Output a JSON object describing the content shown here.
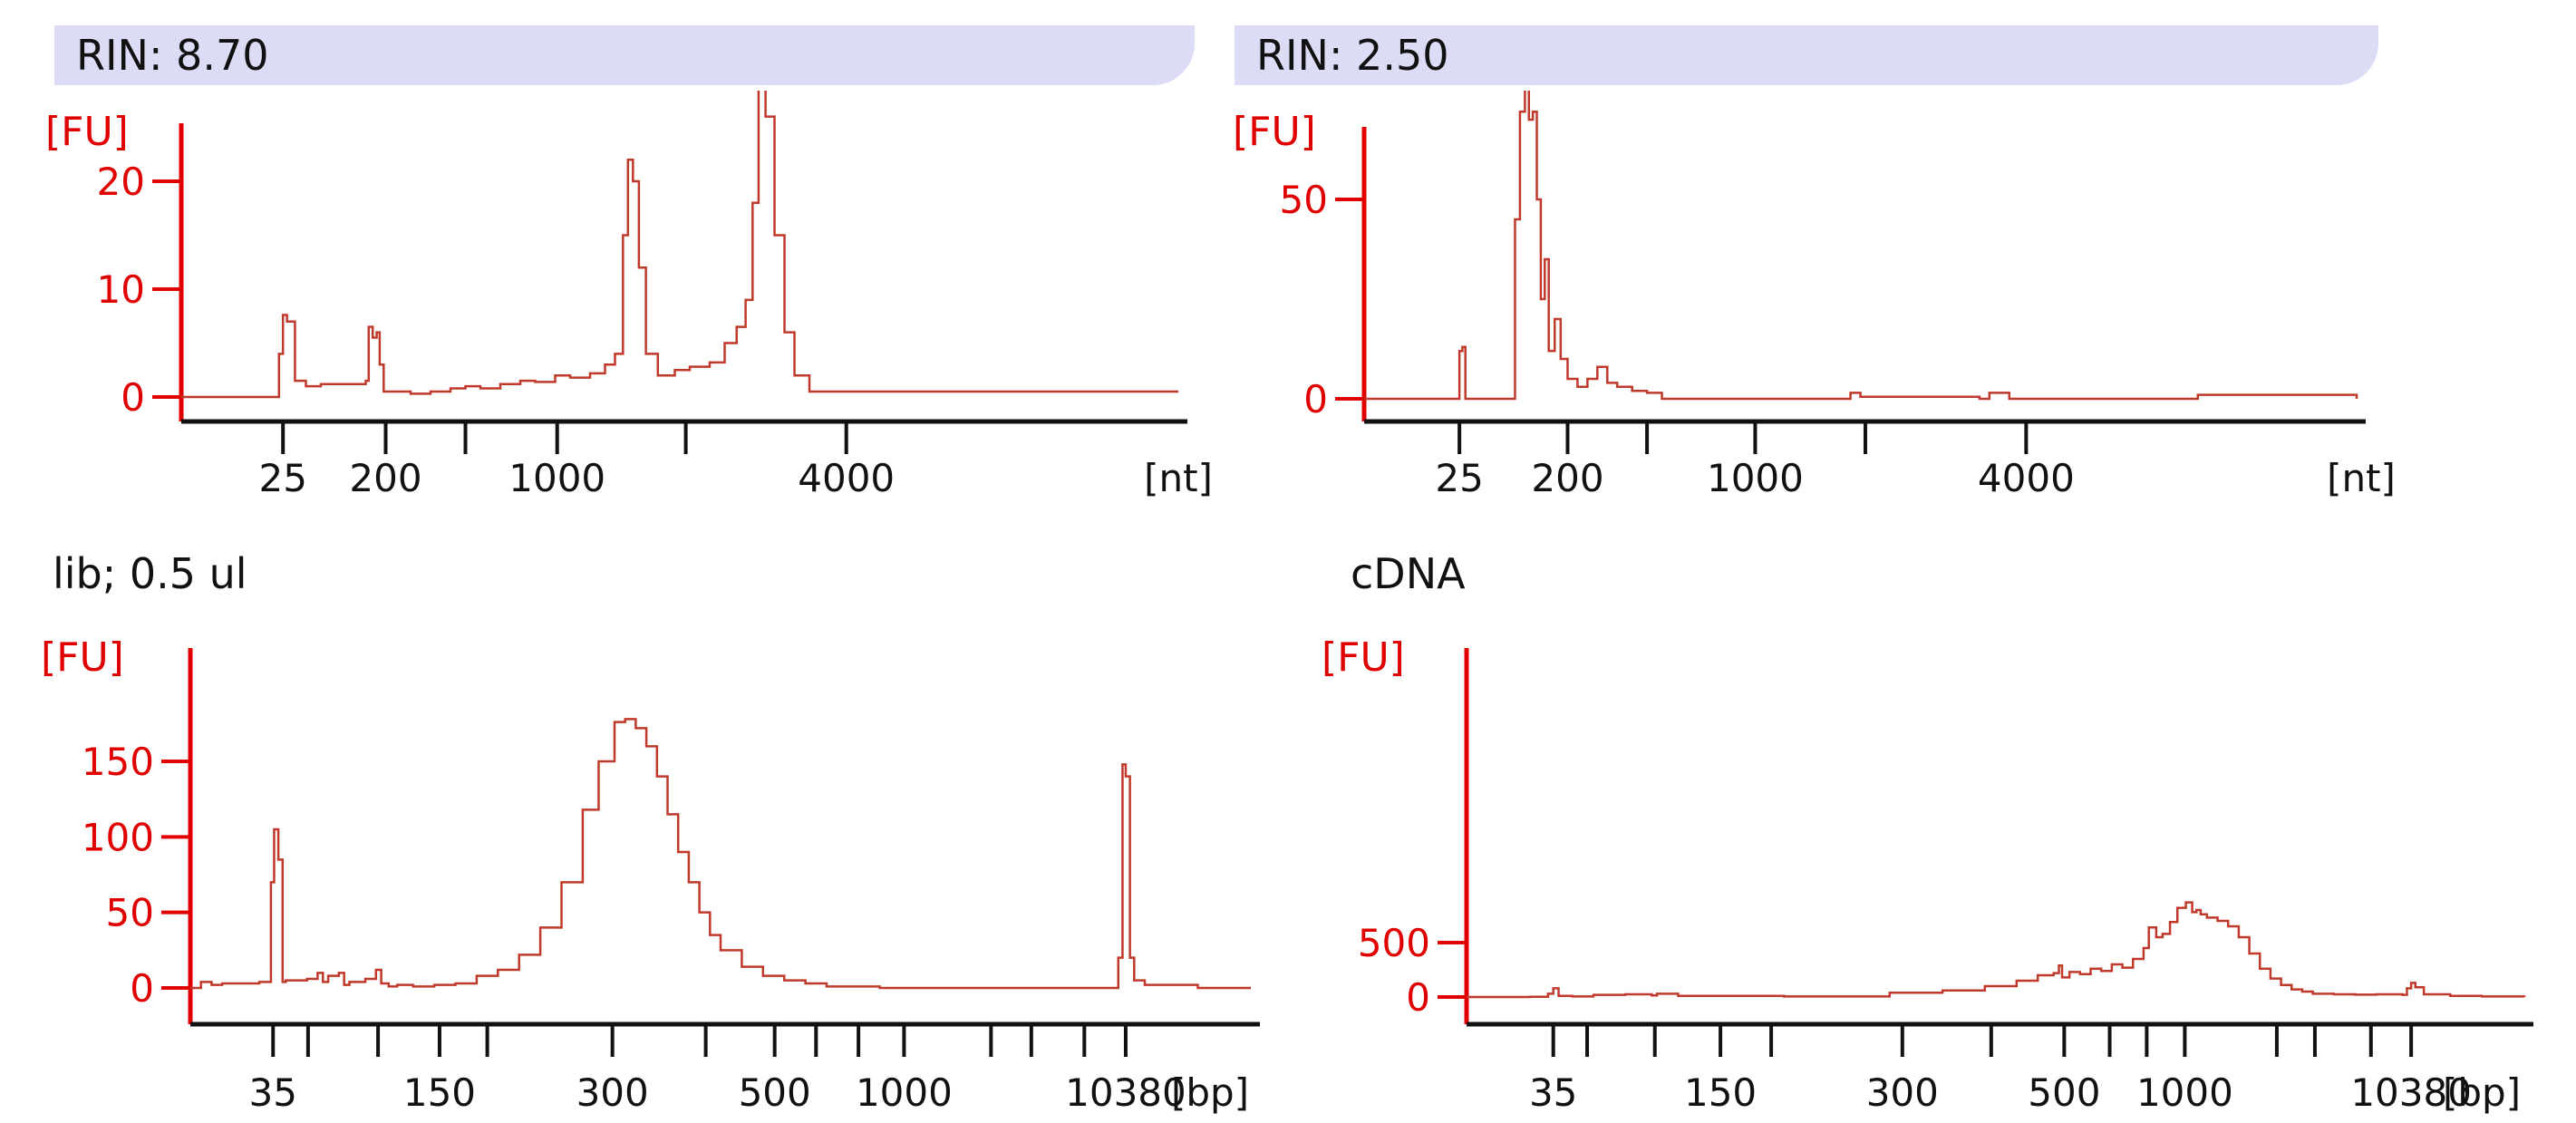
{
  "colors": {
    "axis": "#e00000",
    "trace": "#c0392b",
    "banner": "#dcdcf6",
    "text": "#111111",
    "heading": "#e00000"
  },
  "headings": {
    "left_partial": "",
    "right_partial": ""
  },
  "panels": {
    "tl": {
      "banner": "RIN: 8.70",
      "title": ""
    },
    "tr": {
      "banner": "RIN: 2.50",
      "title": ""
    },
    "bl": {
      "banner": "",
      "title": "lib; 0.5 ul"
    },
    "br": {
      "banner": "",
      "title": "cDNA"
    }
  },
  "chart_data": [
    {
      "id": "tl",
      "type": "line",
      "ylabel": "[FU]",
      "xlabel": "[nt]",
      "ylim": [
        0,
        30
      ],
      "xlim": [
        0,
        100
      ],
      "yticks": [
        0,
        10,
        20
      ],
      "xtick_labels": [
        {
          "x": 10.2,
          "label": "25"
        },
        {
          "x": 20.5,
          "label": "200"
        },
        {
          "x": 37.7,
          "label": "1000"
        },
        {
          "x": 66.7,
          "label": "4000"
        }
      ],
      "xtick_marks": [
        10.2,
        20.5,
        28.5,
        37.7,
        50.6,
        66.7
      ],
      "series": [
        {
          "x": [
            0,
            9,
            9.8,
            10.2,
            10.6,
            11.4,
            12.5,
            14,
            17,
            18.5,
            18.8,
            19.2,
            19.6,
            19.9,
            20.3,
            23,
            25,
            27,
            28.5,
            30,
            32,
            34,
            35.5,
            37.5,
            39,
            41,
            42.5,
            43.5,
            44.3,
            44.8,
            45.3,
            45.9,
            46.6,
            47.8,
            49.5,
            51,
            53,
            54.5,
            55.7,
            56.6,
            57.3,
            57.9,
            58.6,
            59.5,
            60.5,
            61.5,
            63,
            100
          ],
          "y": [
            0,
            0,
            4,
            7.6,
            7,
            1.5,
            1,
            1.2,
            1.2,
            1.5,
            6.5,
            5.5,
            6,
            3,
            0.5,
            0.3,
            0.5,
            0.8,
            1,
            0.8,
            1.2,
            1.5,
            1.4,
            2,
            1.8,
            2.2,
            3,
            4,
            15,
            22,
            20,
            12,
            4,
            2,
            2.5,
            2.8,
            3.2,
            5,
            6.5,
            9,
            18,
            29,
            26,
            15,
            6,
            2,
            0.5,
            0.5
          ]
        }
      ]
    },
    {
      "id": "tr",
      "type": "line",
      "ylabel": "[FU]",
      "xlabel": "[nt]",
      "ylim": [
        0,
        85
      ],
      "xlim": [
        0,
        100
      ],
      "yticks": [
        0,
        50
      ],
      "xtick_labels": [
        {
          "x": 9.6,
          "label": "25"
        },
        {
          "x": 20.5,
          "label": "200"
        },
        {
          "x": 39.4,
          "label": "1000"
        },
        {
          "x": 66.7,
          "label": "4000"
        }
      ],
      "xtick_marks": [
        9.6,
        20.5,
        28.5,
        39.4,
        50.5,
        66.7
      ],
      "series": [
        {
          "x": [
            0,
            9.3,
            9.6,
            9.9,
            10.2,
            14.5,
            15.2,
            15.7,
            16.2,
            16.6,
            17,
            17.4,
            17.8,
            18.2,
            18.6,
            19.2,
            19.8,
            20.5,
            21.5,
            22.5,
            23.5,
            24.5,
            25.5,
            27,
            28.5,
            30,
            40,
            48,
            49,
            50,
            62,
            63,
            65,
            83,
            84,
            100
          ],
          "y": [
            0,
            0,
            12,
            13,
            0,
            0,
            45,
            72,
            80,
            70,
            72,
            50,
            25,
            35,
            12,
            20,
            10,
            5,
            3,
            5,
            8,
            4,
            3,
            2,
            1.5,
            0,
            0,
            0,
            1.5,
            0.5,
            0,
            1.5,
            0,
            0,
            1,
            0
          ]
        }
      ]
    },
    {
      "id": "bl",
      "type": "line",
      "ylabel": "[FU]",
      "xlabel": "[bp]",
      "ylim": [
        0,
        200
      ],
      "xlim": [
        0,
        100
      ],
      "yticks": [
        0,
        50,
        100,
        150
      ],
      "xtick_labels": [
        {
          "x": 7.8,
          "label": "35"
        },
        {
          "x": 23.5,
          "label": "150"
        },
        {
          "x": 39.8,
          "label": "300"
        },
        {
          "x": 55.1,
          "label": "500"
        },
        {
          "x": 67.3,
          "label": "1000"
        },
        {
          "x": 88.2,
          "label": "10380"
        }
      ],
      "xtick_marks": [
        7.8,
        11.1,
        17.7,
        23.5,
        28,
        39.8,
        48.6,
        55.1,
        59,
        63,
        67.3,
        75.5,
        79.3,
        84.3,
        88.2
      ],
      "series": [
        {
          "x": [
            0,
            1,
            2,
            3,
            6.5,
            7.6,
            7.9,
            8.3,
            8.7,
            9,
            11,
            12,
            12.5,
            13,
            14,
            14.5,
            15,
            16.5,
            17.5,
            18,
            18.7,
            19.5,
            21,
            23,
            25,
            27,
            29,
            31,
            33,
            35,
            37,
            38.5,
            40,
            41,
            42,
            43,
            44,
            45,
            46,
            47,
            48,
            49,
            50,
            52,
            54,
            56,
            58,
            60,
            65,
            70,
            75,
            80,
            87.5,
            87.9,
            88.2,
            88.6,
            89,
            90,
            95,
            100
          ],
          "y": [
            0,
            4,
            2,
            3,
            4,
            70,
            105,
            85,
            4,
            5,
            6,
            10,
            4,
            8,
            10,
            2,
            4,
            6,
            12,
            3,
            1,
            2,
            1,
            2,
            3,
            8,
            12,
            22,
            40,
            70,
            118,
            150,
            176,
            178,
            172,
            160,
            140,
            115,
            90,
            70,
            50,
            35,
            25,
            14,
            8,
            5,
            3,
            1,
            0,
            0,
            0,
            0,
            20,
            148,
            140,
            20,
            5,
            2,
            0,
            0
          ]
        }
      ]
    },
    {
      "id": "br",
      "type": "line",
      "ylabel": "[FU]",
      "xlabel": "[bp]",
      "ylim": [
        0,
        900
      ],
      "xlim": [
        0,
        100
      ],
      "yticks": [
        0,
        500
      ],
      "xtick_labels": [
        {
          "x": 8.2,
          "label": "35"
        },
        {
          "x": 24,
          "label": "150"
        },
        {
          "x": 41.2,
          "label": "300"
        },
        {
          "x": 56.5,
          "label": "500"
        },
        {
          "x": 67.9,
          "label": "1000"
        },
        {
          "x": 89.3,
          "label": "10380"
        }
      ],
      "xtick_marks": [
        8.2,
        11.4,
        17.8,
        24,
        28.8,
        41.2,
        49.6,
        56.5,
        60.8,
        64.3,
        67.9,
        76.6,
        80.2,
        85.5,
        89.3
      ],
      "series": [
        {
          "x": [
            0,
            6,
            7.7,
            8.2,
            8.7,
            10,
            12,
            15,
            17.5,
            18,
            20,
            30,
            40,
            45,
            49,
            52,
            54,
            55.5,
            56,
            56.3,
            57,
            58,
            59,
            60,
            61,
            62,
            63,
            64,
            64.5,
            65.2,
            65.8,
            66.5,
            67.2,
            68,
            68.6,
            69,
            69.4,
            70,
            71,
            72,
            73,
            74,
            75,
            76,
            77,
            78,
            79,
            80,
            82,
            84,
            86,
            88.5,
            88.9,
            89.3,
            89.7,
            90.5,
            93,
            96,
            100
          ],
          "y": [
            0,
            2,
            30,
            80,
            10,
            5,
            20,
            25,
            15,
            30,
            10,
            5,
            40,
            60,
            100,
            150,
            200,
            220,
            290,
            180,
            230,
            210,
            260,
            240,
            300,
            270,
            350,
            450,
            640,
            550,
            580,
            690,
            820,
            870,
            780,
            800,
            760,
            730,
            700,
            650,
            550,
            400,
            260,
            170,
            110,
            70,
            50,
            30,
            25,
            22,
            25,
            20,
            80,
            130,
            90,
            25,
            10,
            5,
            0
          ]
        }
      ]
    }
  ]
}
